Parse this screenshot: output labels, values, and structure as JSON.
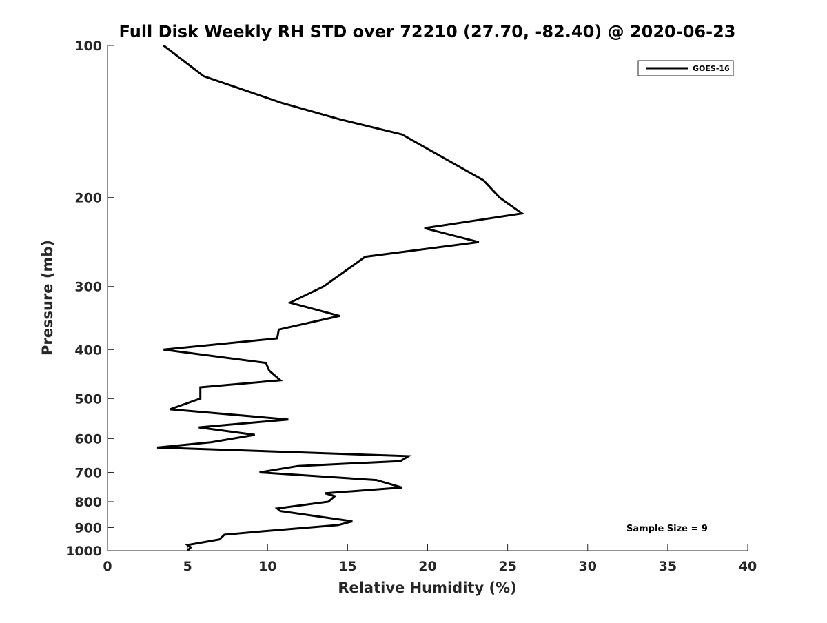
{
  "chart_data": {
    "type": "line",
    "title": "Full Disk Weekly RH STD over 72210 (27.70, -82.40) @ 2020-06-23",
    "xlabel": "Relative Humidity (%)",
    "ylabel": "Pressure (mb)",
    "xlim": [
      0,
      40
    ],
    "ylim": [
      100,
      1000
    ],
    "y_scale": "log",
    "y_reversed": true,
    "x_ticks": [
      0,
      5,
      10,
      15,
      20,
      25,
      30,
      35,
      40
    ],
    "y_ticks": [
      100,
      200,
      300,
      400,
      500,
      600,
      700,
      800,
      900,
      1000
    ],
    "grid": false,
    "legend_position": "top-right",
    "annotation": "Sample Size = 9",
    "series": [
      {
        "name": "GOES-16",
        "color": "#000000",
        "points": [
          [
            3.5,
            100
          ],
          [
            6.0,
            115
          ],
          [
            10.9,
            130
          ],
          [
            14.5,
            140
          ],
          [
            18.4,
            150
          ],
          [
            23.5,
            185
          ],
          [
            24.5,
            200
          ],
          [
            25.9,
            215
          ],
          [
            19.8,
            230
          ],
          [
            23.2,
            245
          ],
          [
            16.1,
            262
          ],
          [
            13.5,
            300
          ],
          [
            11.4,
            323
          ],
          [
            14.5,
            343
          ],
          [
            10.7,
            365
          ],
          [
            10.6,
            380
          ],
          [
            3.5,
            400
          ],
          [
            9.9,
            425
          ],
          [
            10.1,
            440
          ],
          [
            10.8,
            460
          ],
          [
            5.8,
            475
          ],
          [
            5.8,
            500
          ],
          [
            3.9,
            525
          ],
          [
            11.3,
            550
          ],
          [
            5.7,
            570
          ],
          [
            9.2,
            590
          ],
          [
            6.5,
            610
          ],
          [
            3.1,
            625
          ],
          [
            18.8,
            650
          ],
          [
            18.3,
            665
          ],
          [
            11.9,
            680
          ],
          [
            9.5,
            700
          ],
          [
            16.8,
            725
          ],
          [
            18.4,
            750
          ],
          [
            13.6,
            770
          ],
          [
            14.2,
            780
          ],
          [
            13.8,
            800
          ],
          [
            10.6,
            825
          ],
          [
            10.8,
            835
          ],
          [
            15.3,
            875
          ],
          [
            14.4,
            890
          ],
          [
            9.8,
            915
          ],
          [
            7.3,
            930
          ],
          [
            7.0,
            950
          ],
          [
            5.0,
            975
          ],
          [
            5.2,
            985
          ],
          [
            5.0,
            1000
          ]
        ]
      }
    ]
  }
}
